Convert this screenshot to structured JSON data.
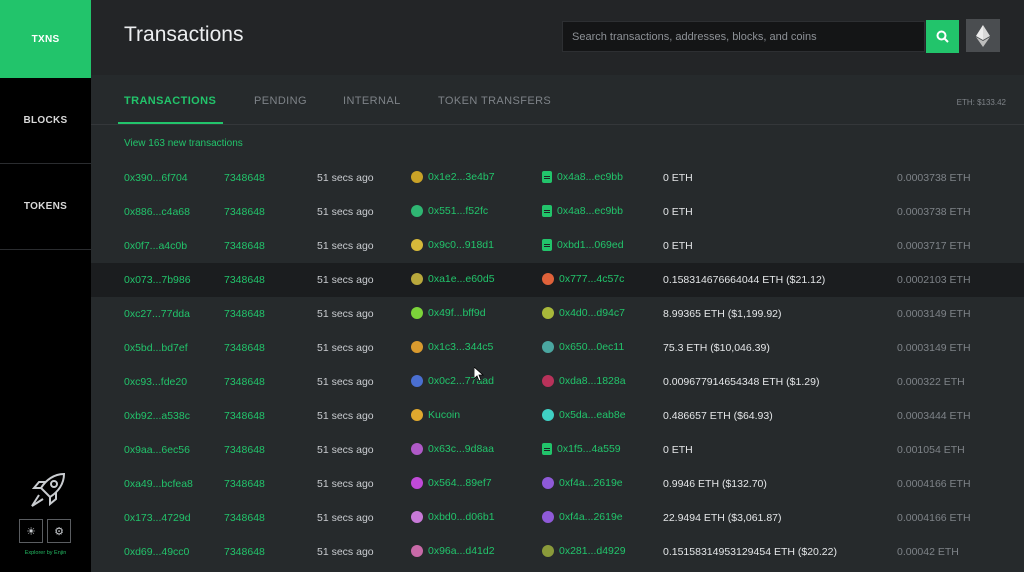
{
  "sidebar": {
    "items": [
      {
        "label": "TXNS",
        "active": true
      },
      {
        "label": "BLOCKS",
        "active": false
      },
      {
        "label": "TOKENS",
        "active": false
      }
    ],
    "footer": "Explorer by Enjin"
  },
  "header": {
    "title": "Transactions",
    "search_placeholder": "Search transactions, addresses, blocks, and coins"
  },
  "tabs": [
    {
      "label": "TRANSACTIONS",
      "active": true
    },
    {
      "label": "PENDING",
      "active": false
    },
    {
      "label": "INTERNAL",
      "active": false
    },
    {
      "label": "TOKEN TRANSFERS",
      "active": false
    }
  ],
  "eth_price": "ETH: $133.42",
  "new_txns_label": "View 163 new transactions",
  "colors": {
    "accent": "#22c46b",
    "sidebar": "#000000"
  },
  "transactions": [
    {
      "hash": "0x390...6f704",
      "block": "7348648",
      "age": "51 secs ago",
      "from": "0x1e2...3e4b7",
      "from_color": "#c9a227",
      "to": "0x4a8...ec9bb",
      "to_icon": "doc",
      "to_color": "#22c46b",
      "value": "0 ETH",
      "fee": "0.0003738 ETH"
    },
    {
      "hash": "0x886...c4a68",
      "block": "7348648",
      "age": "51 secs ago",
      "from": "0x551...f52fc",
      "from_color": "#2fb673",
      "to": "0x4a8...ec9bb",
      "to_icon": "doc",
      "to_color": "#22c46b",
      "value": "0 ETH",
      "fee": "0.0003738 ETH"
    },
    {
      "hash": "0x0f7...a4c0b",
      "block": "7348648",
      "age": "51 secs ago",
      "from": "0x9c0...918d1",
      "from_color": "#d6b93a",
      "to": "0xbd1...069ed",
      "to_icon": "doc",
      "to_color": "#22c46b",
      "value": "0 ETH",
      "fee": "0.0003717 ETH"
    },
    {
      "hash": "0x073...7b986",
      "block": "7348648",
      "age": "51 secs ago",
      "from": "0xa1e...e60d5",
      "from_color": "#b9a83c",
      "to": "0x777...4c57c",
      "to_icon": "dot",
      "to_color": "#e0623a",
      "value": "0.158314676664044 ETH ($21.12)",
      "fee": "0.0002103 ETH",
      "highlight": true
    },
    {
      "hash": "0xc27...77dda",
      "block": "7348648",
      "age": "51 secs ago",
      "from": "0x49f...bff9d",
      "from_color": "#7cd43a",
      "to": "0x4d0...d94c7",
      "to_icon": "dot",
      "to_color": "#a8b83a",
      "value": "8.99365 ETH ($1,199.92)",
      "fee": "0.0003149 ETH"
    },
    {
      "hash": "0x5bd...bd7ef",
      "block": "7348648",
      "age": "51 secs ago",
      "from": "0x1c3...344c5",
      "from_color": "#d99a2e",
      "to": "0x650...0ec11",
      "to_icon": "dot",
      "to_color": "#4aa6a0",
      "value": "75.3 ETH ($10,046.39)",
      "fee": "0.0003149 ETH"
    },
    {
      "hash": "0xc93...fde20",
      "block": "7348648",
      "age": "51 secs ago",
      "from": "0x0c2...77aad",
      "from_color": "#4a6fd1",
      "to": "0xda8...1828a",
      "to_icon": "dot",
      "to_color": "#b8325a",
      "value": "0.009677914654348 ETH ($1.29)",
      "fee": "0.000322 ETH"
    },
    {
      "hash": "0xb92...a538c",
      "block": "7348648",
      "age": "51 secs ago",
      "from": "Kucoin",
      "from_color": "#e0a82e",
      "to": "0x5da...eab8e",
      "to_icon": "dot",
      "to_color": "#3fd0c4",
      "value": "0.486657 ETH ($64.93)",
      "fee": "0.0003444 ETH"
    },
    {
      "hash": "0x9aa...6ec56",
      "block": "7348648",
      "age": "51 secs ago",
      "from": "0x63c...9d8aa",
      "from_color": "#b05ac8",
      "to": "0x1f5...4a559",
      "to_icon": "doc",
      "to_color": "#22c46b",
      "value": "0 ETH",
      "fee": "0.001054 ETH"
    },
    {
      "hash": "0xa49...bcfea8",
      "block": "7348648",
      "age": "51 secs ago",
      "from": "0x564...89ef7",
      "from_color": "#c04ad8",
      "to": "0xf4a...2619e",
      "to_icon": "dot",
      "to_color": "#8f5ad8",
      "value": "0.9946 ETH ($132.70)",
      "fee": "0.0004166 ETH"
    },
    {
      "hash": "0x173...4729d",
      "block": "7348648",
      "age": "51 secs ago",
      "from": "0xbd0...d06b1",
      "from_color": "#c87ad8",
      "to": "0xf4a...2619e",
      "to_icon": "dot",
      "to_color": "#8f5ad8",
      "value": "22.9494 ETH ($3,061.87)",
      "fee": "0.0004166 ETH"
    },
    {
      "hash": "0xd69...49cc0",
      "block": "7348648",
      "age": "51 secs ago",
      "from": "0x96a...d41d2",
      "from_color": "#c86aa8",
      "to": "0x281...d4929",
      "to_icon": "dot",
      "to_color": "#8a9a3a",
      "value": "0.15158314953129454 ETH ($20.22)",
      "fee": "0.00042 ETH"
    }
  ]
}
